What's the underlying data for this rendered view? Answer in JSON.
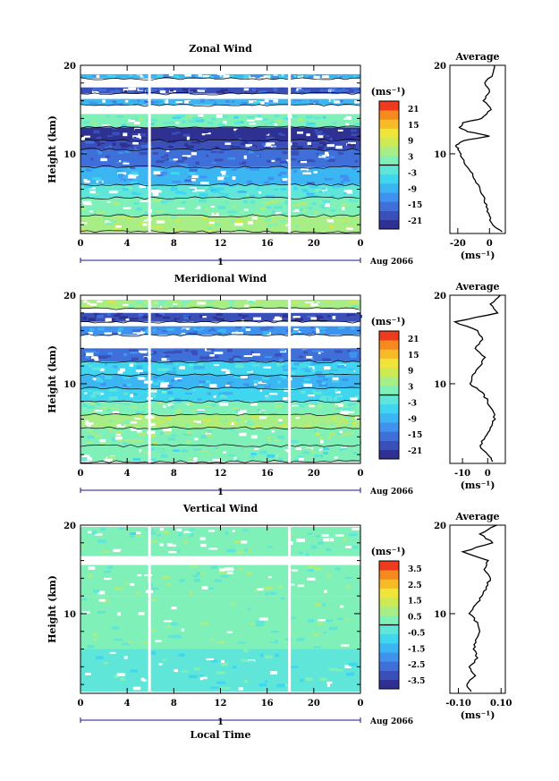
{
  "chart_data": [
    {
      "type": "heatmap",
      "title": "Zonal Wind",
      "xlabel": "",
      "ylabel": "Height (km)",
      "xlim": [
        0,
        24
      ],
      "ylim": [
        1,
        20
      ],
      "x_ticks": [
        "0",
        "4",
        "8",
        "12",
        "16",
        "20",
        "0"
      ],
      "y_ticks": [
        "20",
        "10"
      ],
      "date_label": "1",
      "date_suffix": "Aug 2066",
      "colorbar": {
        "unit": "(ms⁻¹)",
        "ticks": [
          "21",
          "15",
          "9",
          "3",
          "-3",
          "-9",
          "-15",
          "-21"
        ],
        "range": [
          -24,
          24
        ]
      },
      "layers": [
        {
          "h0": 1.2,
          "h1": 3.0,
          "value": 6
        },
        {
          "h0": 3.0,
          "h1": 5.0,
          "value": 2
        },
        {
          "h0": 5.0,
          "h1": 6.5,
          "value": -3
        },
        {
          "h0": 6.5,
          "h1": 8.5,
          "value": -10
        },
        {
          "h0": 8.5,
          "h1": 10.5,
          "value": -16
        },
        {
          "h0": 10.5,
          "h1": 11.5,
          "value": -20
        },
        {
          "h0": 11.5,
          "h1": 13.0,
          "value": -22
        },
        {
          "h0": 13.0,
          "h1": 14.5,
          "value": 0
        },
        {
          "h0": 15.5,
          "h1": 16.2,
          "value": -10
        },
        {
          "h0": 16.8,
          "h1": 17.5,
          "value": -18
        },
        {
          "h0": 18.5,
          "h1": 19.0,
          "value": -8
        }
      ],
      "profile": {
        "title": "Average",
        "xlabel": "(ms⁻¹)",
        "x_ticks": [
          "-20",
          "0"
        ],
        "xlim": [
          -25,
          10
        ],
        "heights": [
          1.2,
          2,
          3,
          4,
          5,
          6,
          7,
          8,
          9,
          10,
          10.5,
          11,
          11.5,
          12,
          12.5,
          13,
          13.5,
          14,
          15,
          16,
          17,
          18,
          19,
          20
        ],
        "values": [
          8,
          2,
          0,
          -2,
          -3,
          -6,
          -9,
          -12,
          -16,
          -18,
          -20,
          -21,
          -16,
          0,
          -14,
          -19,
          -17,
          -5,
          1,
          -4,
          0,
          -3,
          2,
          3
        ]
      }
    },
    {
      "type": "heatmap",
      "title": "Meridional Wind",
      "xlabel": "",
      "ylabel": "Height (km)",
      "xlim": [
        0,
        24
      ],
      "ylim": [
        1,
        20
      ],
      "x_ticks": [
        "0",
        "4",
        "8",
        "12",
        "16",
        "20",
        "0"
      ],
      "y_ticks": [
        "20",
        "10"
      ],
      "date_label": "1",
      "date_suffix": "Aug 2066",
      "colorbar": {
        "unit": "(ms⁻¹)",
        "ticks": [
          "21",
          "15",
          "9",
          "3",
          "-3",
          "-9",
          "-15",
          "-21"
        ],
        "range": [
          -24,
          24
        ]
      },
      "layers": [
        {
          "h0": 1.2,
          "h1": 3.0,
          "value": 0
        },
        {
          "h0": 3.0,
          "h1": 5.0,
          "value": 3
        },
        {
          "h0": 5.0,
          "h1": 6.5,
          "value": 5
        },
        {
          "h0": 6.5,
          "h1": 8.0,
          "value": 2
        },
        {
          "h0": 8.0,
          "h1": 9.5,
          "value": -4
        },
        {
          "h0": 9.5,
          "h1": 11.0,
          "value": -8
        },
        {
          "h0": 11.0,
          "h1": 12.5,
          "value": -5
        },
        {
          "h0": 12.5,
          "h1": 14.0,
          "value": -16
        },
        {
          "h0": 15.5,
          "h1": 16.5,
          "value": -12
        },
        {
          "h0": 17.0,
          "h1": 18.0,
          "value": -20
        },
        {
          "h0": 18.5,
          "h1": 19.5,
          "value": 4
        }
      ],
      "profile": {
        "title": "Average",
        "xlabel": "(ms⁻¹)",
        "x_ticks": [
          "-10",
          "0"
        ],
        "xlim": [
          -15,
          7
        ],
        "heights": [
          1.2,
          2,
          3,
          4,
          5,
          6,
          7,
          8,
          9,
          10,
          11,
          12,
          13,
          14,
          15,
          16,
          17,
          18,
          19,
          20
        ],
        "values": [
          2,
          0,
          -3,
          -1,
          1,
          3,
          2,
          0,
          -2,
          -7,
          -6,
          -3,
          -1,
          -5,
          -2,
          -4,
          -13,
          4,
          1,
          5
        ]
      }
    },
    {
      "type": "heatmap",
      "title": "Vertical Wind",
      "xlabel": "Local Time",
      "ylabel": "Height (km)",
      "xlim": [
        0,
        24
      ],
      "ylim": [
        1,
        20
      ],
      "x_ticks": [
        "0",
        "4",
        "8",
        "12",
        "16",
        "20",
        "0"
      ],
      "y_ticks": [
        "20",
        "10"
      ],
      "date_label": "1",
      "date_suffix": "Aug 2066",
      "colorbar": {
        "unit": "(ms⁻¹)",
        "ticks": [
          "3.5",
          "2.5",
          "1.5",
          "0.5",
          "-0.5",
          "-1.5",
          "-2.5",
          "-3.5"
        ],
        "range": [
          -4,
          4
        ]
      },
      "layers": [
        {
          "h0": 1.2,
          "h1": 6.0,
          "value": -0.3
        },
        {
          "h0": 6.0,
          "h1": 12.0,
          "value": 0.2
        },
        {
          "h0": 12.0,
          "h1": 15.5,
          "value": 0.3
        },
        {
          "h0": 16.5,
          "h1": 19.8,
          "value": 0.1
        }
      ],
      "profile": {
        "title": "Average",
        "xlabel": "(ms⁻¹)",
        "x_ticks": [
          "-0.10",
          "0.10"
        ],
        "xlim": [
          -0.14,
          0.12
        ],
        "heights": [
          1.2,
          2,
          3,
          4,
          5,
          6,
          7,
          8,
          9,
          10,
          11,
          12,
          13,
          14,
          15,
          16,
          17,
          18,
          19,
          20
        ],
        "values": [
          -0.04,
          -0.06,
          -0.02,
          -0.05,
          -0.01,
          -0.03,
          -0.02,
          0.0,
          -0.01,
          -0.05,
          -0.02,
          0.01,
          0.03,
          0.05,
          0.02,
          0.04,
          -0.08,
          0.06,
          0.0,
          0.08
        ]
      }
    }
  ]
}
